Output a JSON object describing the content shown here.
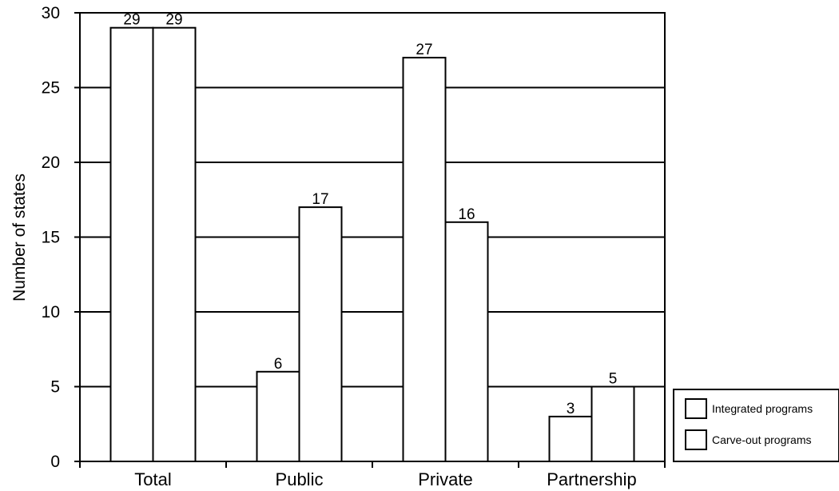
{
  "chart_data": {
    "type": "bar",
    "categories": [
      "Total",
      "Public",
      "Private",
      "Partnership"
    ],
    "series": [
      {
        "name": "Integrated programs",
        "values": [
          29,
          6,
          27,
          3
        ]
      },
      {
        "name": "Carve-out programs",
        "values": [
          29,
          17,
          16,
          5
        ]
      }
    ],
    "xlabel": "",
    "ylabel": "Number of states",
    "ylim": [
      0,
      30
    ],
    "yticks": [
      "0",
      "5",
      "10",
      "15",
      "20",
      "25",
      "30"
    ],
    "grid": true,
    "legend_position": "bottom-right",
    "bar_fill": "#ffffff",
    "line_color": "#000000"
  }
}
